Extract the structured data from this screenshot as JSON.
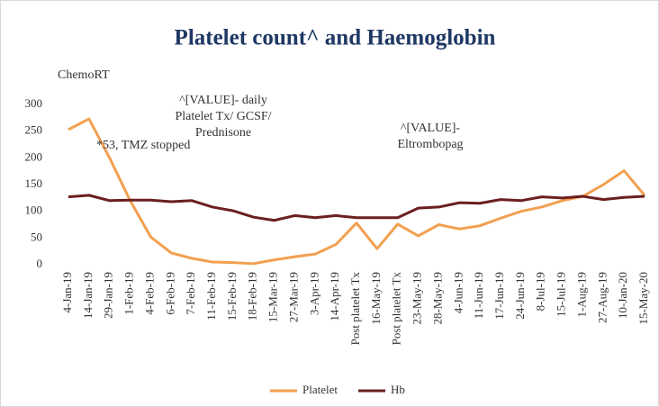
{
  "chart_data": {
    "type": "line",
    "title": "Platelet count^ and Haemoglobin",
    "annotations": [
      {
        "lines": [
          "ChemoRT"
        ]
      },
      {
        "lines": [
          "^[VALUE]- daily",
          "Platelet Tx/ GCSF/",
          "Prednisone"
        ]
      },
      {
        "lines": [
          "*53, TMZ stopped"
        ]
      },
      {
        "lines": [
          "^[VALUE]-",
          "Eltrombopag"
        ]
      }
    ],
    "categories": [
      "4-Jan-19",
      "14-Jan-19",
      "29-Jan-19",
      "1-Feb-19",
      "4-Feb-19",
      "6-Feb-19",
      "7-Feb-19",
      "11-Feb-19",
      "15-Feb-19",
      "18-Feb-19",
      "15-Mar-19",
      "27-Mar-19",
      "3-Apr-19",
      "14-Apr-19",
      "Post platelet Tx",
      "16-May-19",
      "Post platelet Tx",
      "23-May-19",
      "28-May-19",
      "4-Jun-19",
      "11-Jun-19",
      "17-Jun-19",
      "24-Jun-19",
      "8-Jul-19",
      "15-Jul-19",
      "1-Aug-19",
      "27-Aug-19",
      "10-Jan-20",
      "15-May-20"
    ],
    "series": [
      {
        "name": "Platelet",
        "color": "#f2a050",
        "values": [
          253,
          273,
          200,
          120,
          52,
          22,
          12,
          5,
          4,
          2,
          9,
          15,
          20,
          38,
          78,
          30,
          76,
          54,
          75,
          67,
          73,
          87,
          100,
          108,
          120,
          128,
          150,
          176,
          130
        ]
      },
      {
        "name": "Hb",
        "color": "#6b1f1f",
        "values": [
          127,
          130,
          120,
          121,
          121,
          118,
          120,
          108,
          101,
          89,
          83,
          92,
          88,
          92,
          88,
          88,
          88,
          106,
          108,
          116,
          115,
          122,
          120,
          127,
          125,
          128,
          122,
          126,
          128
        ]
      }
    ],
    "ylim": [
      0,
      300
    ],
    "yticks": [
      0,
      50,
      100,
      150,
      200,
      250,
      300
    ],
    "grid": false,
    "legend": "bottom"
  }
}
